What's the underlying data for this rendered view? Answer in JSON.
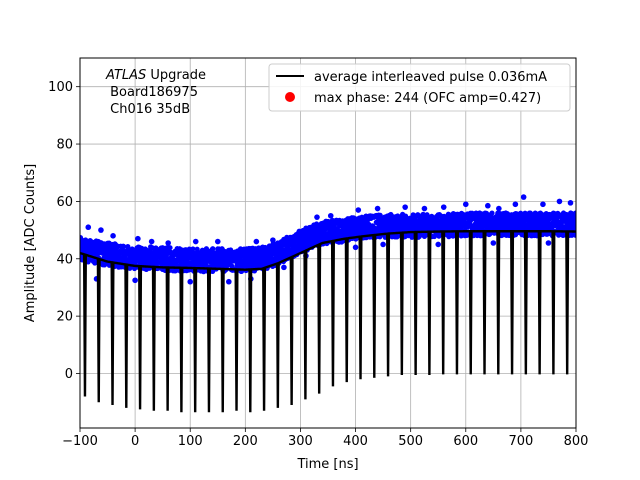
{
  "chart_data": {
    "type": "scatter",
    "title": "",
    "xlabel": "Time [ns]",
    "ylabel": "Amplitude [ADC Counts]",
    "xlim": [
      -100,
      800
    ],
    "ylim": [
      -19,
      110
    ],
    "xticks": [
      -100,
      0,
      100,
      200,
      300,
      400,
      500,
      600,
      700,
      800
    ],
    "xtick_labels": [
      "−100",
      "0",
      "100",
      "200",
      "300",
      "400",
      "500",
      "600",
      "700",
      "800"
    ],
    "yticks": [
      0,
      20,
      40,
      60,
      80,
      100
    ],
    "ytick_labels": [
      "0",
      "20",
      "40",
      "60",
      "80",
      "100"
    ],
    "grid": true,
    "legend_position": "top-right",
    "annotation": {
      "line1_italic": "ATLAS",
      "line1_rest": " Upgrade",
      "line2": " Board186975",
      "line3": " Ch016 35dB"
    },
    "series": [
      {
        "name": "average interleaved pulse 0.036mA",
        "kind": "line",
        "color": "#000000",
        "baseline": [
          [
            -100,
            42
          ],
          [
            -50,
            39
          ],
          [
            0,
            37.5
          ],
          [
            50,
            37
          ],
          [
            100,
            36.8
          ],
          [
            150,
            36.5
          ],
          [
            200,
            36.2
          ],
          [
            230,
            36.5
          ],
          [
            260,
            38.5
          ],
          [
            300,
            42
          ],
          [
            340,
            45.5
          ],
          [
            380,
            47
          ],
          [
            420,
            48
          ],
          [
            460,
            48.8
          ],
          [
            500,
            49.3
          ],
          [
            550,
            49.5
          ],
          [
            600,
            49.6
          ],
          [
            650,
            49.6
          ],
          [
            700,
            49.6
          ],
          [
            750,
            49.6
          ],
          [
            800,
            49.5
          ]
        ],
        "dips": [
          [
            -91,
            -8
          ],
          [
            -66,
            -10
          ],
          [
            -41,
            -11
          ],
          [
            -16,
            -12
          ],
          [
            9,
            -12.5
          ],
          [
            34,
            -13
          ],
          [
            59,
            -13
          ],
          [
            84,
            -13.5
          ],
          [
            109,
            -13.5
          ],
          [
            134,
            -13.5
          ],
          [
            159,
            -13.5
          ],
          [
            184,
            -13
          ],
          [
            209,
            -13.5
          ],
          [
            234,
            -13
          ],
          [
            259,
            -12
          ],
          [
            284,
            -11
          ],
          [
            309,
            -9
          ],
          [
            334,
            -7
          ],
          [
            359,
            -4.5
          ],
          [
            384,
            -3
          ],
          [
            409,
            -2
          ],
          [
            434,
            -1.5
          ],
          [
            459,
            -1
          ],
          [
            484,
            -0.5
          ],
          [
            509,
            -0.5
          ],
          [
            534,
            -0.5
          ],
          [
            559,
            -0.3
          ],
          [
            584,
            -0.3
          ],
          [
            609,
            -0.3
          ],
          [
            634,
            -0.3
          ],
          [
            659,
            -0.3
          ],
          [
            684,
            -0.3
          ],
          [
            709,
            -0.3
          ],
          [
            734,
            -0.3
          ],
          [
            759,
            -0.3
          ],
          [
            784,
            -0.3
          ]
        ]
      },
      {
        "name": "max phase: 244 (OFC amp=0.427)",
        "kind": "scatter",
        "color": "#ff0000"
      },
      {
        "name": "",
        "kind": "scatter",
        "color": "#0000ff",
        "band_center": [
          [
            -100,
            43.5
          ],
          [
            -50,
            41.5
          ],
          [
            0,
            40.5
          ],
          [
            50,
            40
          ],
          [
            100,
            39.5
          ],
          [
            150,
            39.5
          ],
          [
            200,
            39.5
          ],
          [
            230,
            40
          ],
          [
            260,
            42
          ],
          [
            300,
            46
          ],
          [
            340,
            49
          ],
          [
            380,
            50
          ],
          [
            420,
            51
          ],
          [
            460,
            51.5
          ],
          [
            500,
            51.5
          ],
          [
            550,
            51.5
          ],
          [
            600,
            52
          ],
          [
            650,
            52
          ],
          [
            700,
            52
          ],
          [
            750,
            52
          ],
          [
            800,
            52
          ]
        ],
        "band_halfwidth": 4,
        "outliers": [
          [
            -85,
            51
          ],
          [
            -62,
            50
          ],
          [
            -40,
            48
          ],
          [
            5,
            47
          ],
          [
            30,
            46
          ],
          [
            60,
            45.5
          ],
          [
            110,
            46
          ],
          [
            150,
            46
          ],
          [
            220,
            46
          ],
          [
            250,
            46.5
          ],
          [
            330,
            54.5
          ],
          [
            355,
            55
          ],
          [
            405,
            57
          ],
          [
            440,
            57.5
          ],
          [
            490,
            58
          ],
          [
            525,
            57.5
          ],
          [
            560,
            58
          ],
          [
            600,
            59
          ],
          [
            640,
            58.5
          ],
          [
            660,
            57.5
          ],
          [
            690,
            59
          ],
          [
            705,
            61.5
          ],
          [
            740,
            59
          ],
          [
            770,
            60
          ],
          [
            790,
            59.5
          ],
          [
            -70,
            33
          ],
          [
            0,
            32.5
          ],
          [
            100,
            32
          ],
          [
            170,
            32
          ],
          [
            210,
            33
          ],
          [
            270,
            37
          ],
          [
            310,
            41
          ],
          [
            400,
            44
          ],
          [
            450,
            45
          ],
          [
            550,
            45
          ],
          [
            650,
            45.5
          ],
          [
            750,
            45.5
          ]
        ]
      }
    ]
  }
}
